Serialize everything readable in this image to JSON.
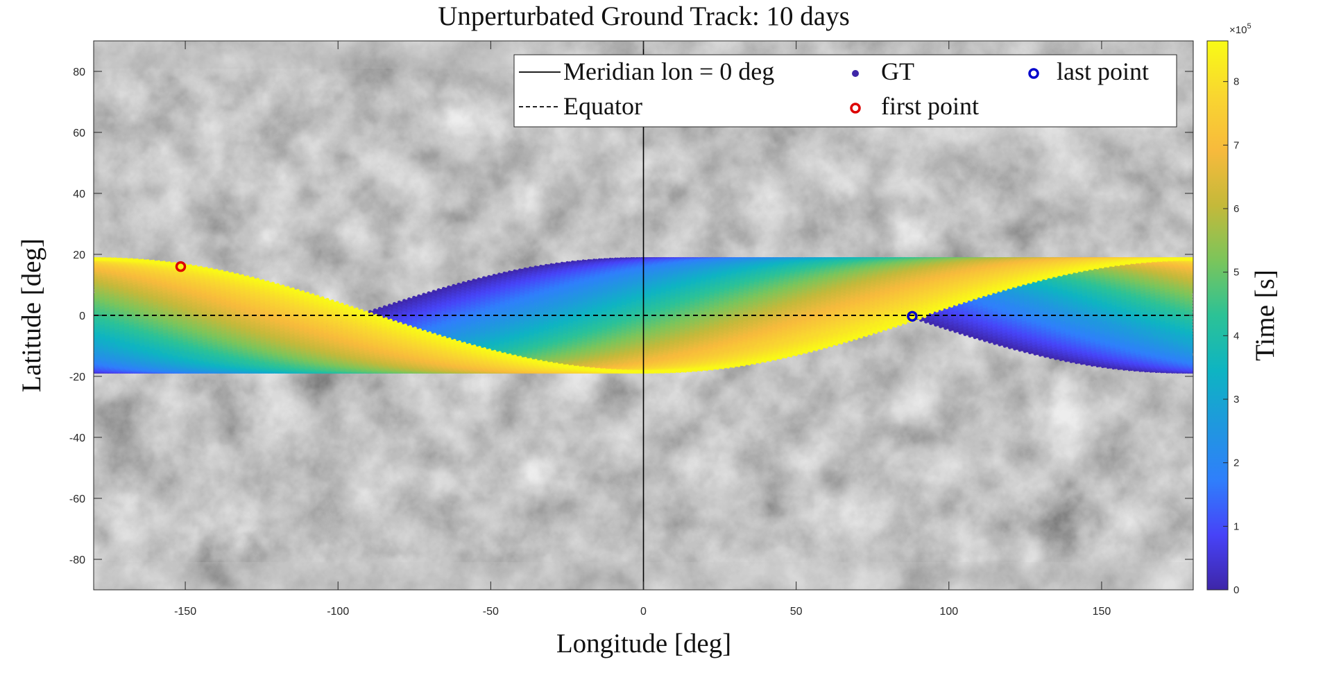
{
  "chart_data": {
    "type": "scatter",
    "title": "Unperturbated Ground Track: 10 days",
    "xlabel": "Longitude [deg]",
    "ylabel": "Latitude [deg]",
    "xlim": [
      -180,
      180
    ],
    "ylim": [
      -90,
      90
    ],
    "xticks": [
      "-150",
      "-100",
      "-50",
      "0",
      "50",
      "100",
      "150"
    ],
    "yticks": [
      "80",
      "60",
      "40",
      "20",
      "0",
      "-20",
      "-40",
      "-60",
      "-80"
    ],
    "background": "Mercury surface map (grayscale)",
    "legend": {
      "placement": "top-right",
      "entries": [
        {
          "label": "Meridian lon = 0 deg",
          "style": "solid-line",
          "color": "#000000"
        },
        {
          "label": "GT",
          "style": "filled-dot",
          "color": "#3e26a8"
        },
        {
          "label": "last point",
          "style": "circle",
          "color": "#0000cc"
        },
        {
          "label": "Equator",
          "style": "dashed-line",
          "color": "#000000"
        },
        {
          "label": "first point",
          "style": "circle",
          "color": "#dd0000"
        }
      ]
    },
    "ground_track": {
      "inclination_deg": 18.5,
      "start_lon_deg": -151.5,
      "start_lat_deg": 16,
      "end_lon_deg": 88,
      "end_lat_deg": -0.3,
      "node_lon_deg_at_start": -94,
      "node_lon_deg_at_end": 93
    },
    "first_point": {
      "lon": -151.5,
      "lat": 16,
      "color": "#dd0000"
    },
    "last_point": {
      "lon": 88,
      "lat": -0.3,
      "color": "#0000cc"
    },
    "meridian_lon": 0,
    "equator_lat": 0,
    "colorbar": {
      "label": "Time [s]",
      "exponent": "×10",
      "exponent_power": "5",
      "range": [
        0,
        864000
      ],
      "ticks": [
        "0",
        "1",
        "2",
        "3",
        "4",
        "5",
        "6",
        "7",
        "8"
      ],
      "colormap": [
        "#3e26a8",
        "#4743f8",
        "#2f7ffb",
        "#1f98de",
        "#0eb4c2",
        "#2cc296",
        "#7bc55b",
        "#c4b93a",
        "#f7ba3c",
        "#f9d630",
        "#f9fb15"
      ]
    }
  }
}
